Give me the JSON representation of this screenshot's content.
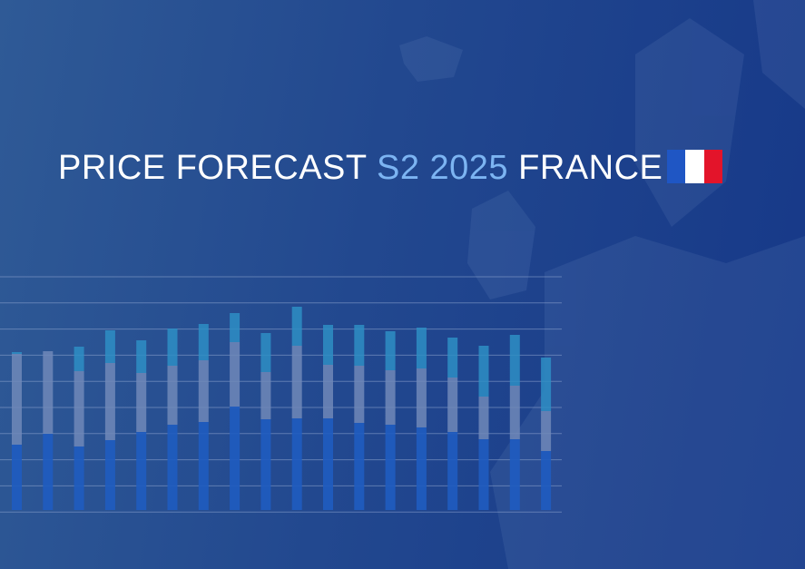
{
  "header": {
    "title_parts": [
      "PRICE FORECAST",
      "S2 2025",
      "FRANCE"
    ]
  }
}
